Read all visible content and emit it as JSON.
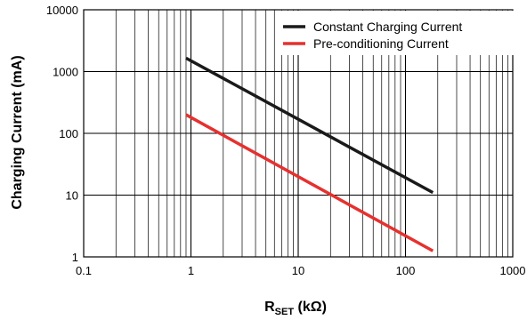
{
  "chart_data": {
    "type": "line",
    "x_scale": "log",
    "y_scale": "log",
    "xlim": [
      0.1,
      1000
    ],
    "ylim": [
      1,
      10000
    ],
    "grid": true,
    "legend_position": "top-right",
    "xlabel": {
      "main": "R",
      "subscript": "SET",
      "unit": " (kΩ)"
    },
    "ylabel": "Charging Current (mA)",
    "x_tick_labels": [
      "0.1",
      "1",
      "10",
      "100",
      "1000"
    ],
    "y_tick_labels": [
      "1",
      "10",
      "100",
      "1000",
      "10000"
    ],
    "series": [
      {
        "name": "Constant Charging Current",
        "color": "#1a1a1a",
        "x": [
          0.9,
          180
        ],
        "y": [
          1650,
          11
        ]
      },
      {
        "name": "Pre-conditioning Current",
        "color": "#e5312f",
        "x": [
          0.9,
          180
        ],
        "y": [
          200,
          1.25
        ]
      }
    ]
  }
}
